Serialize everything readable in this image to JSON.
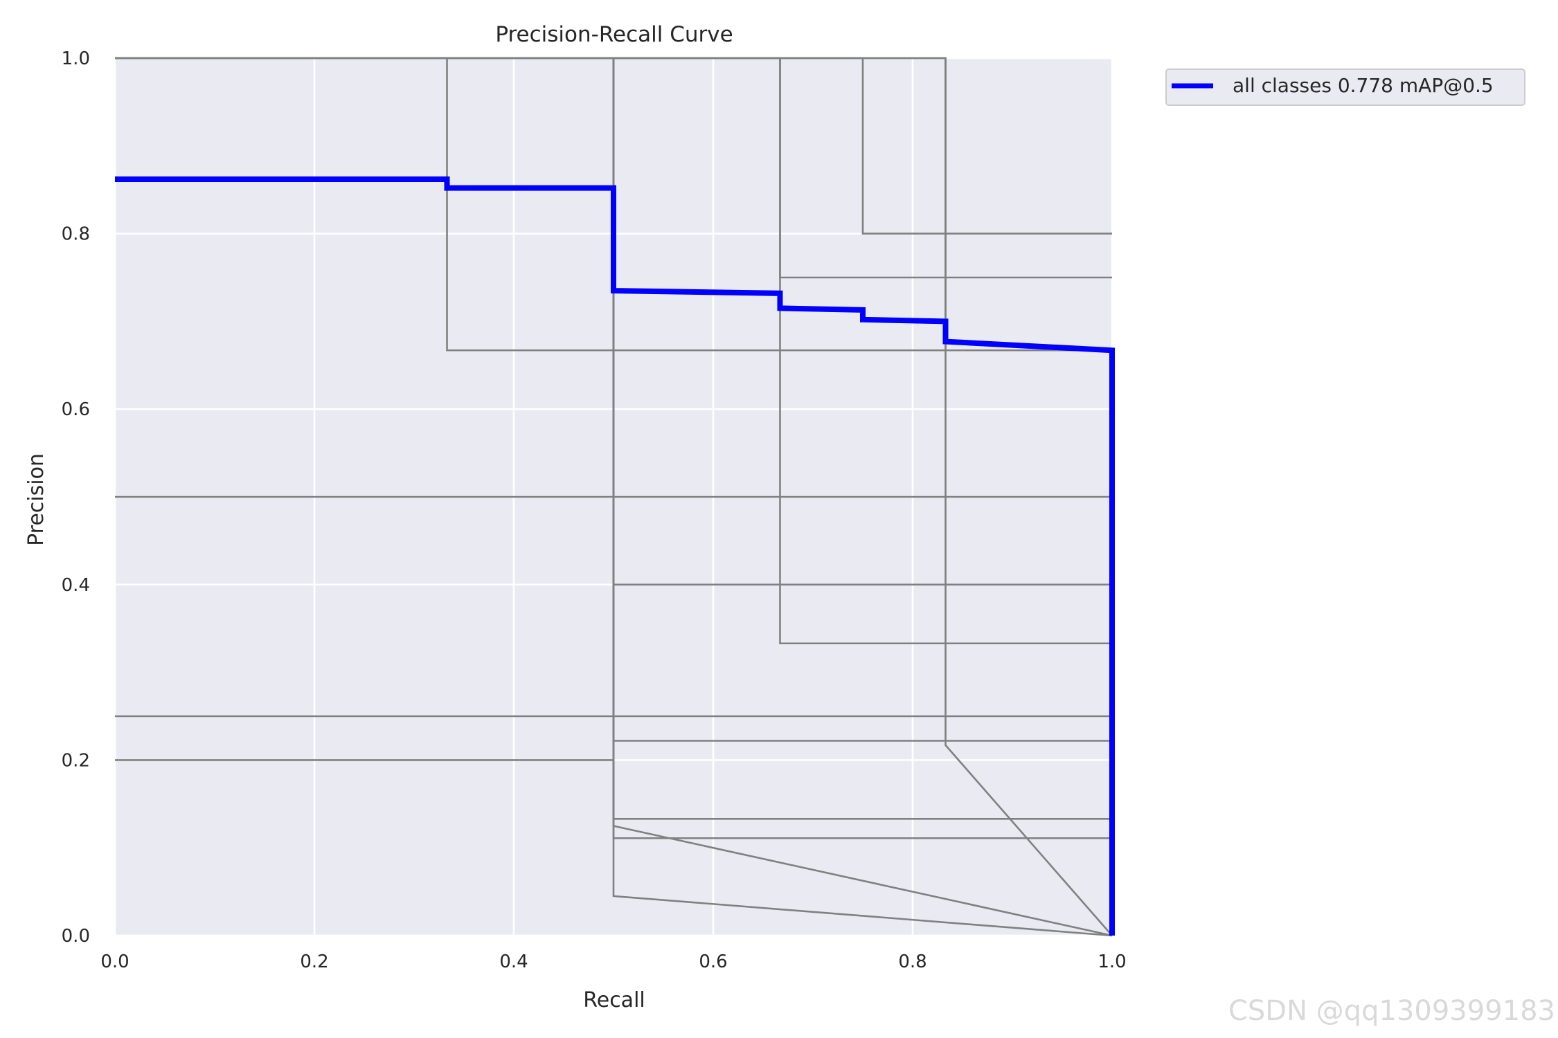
{
  "chart_data": {
    "type": "line",
    "title": "Precision-Recall Curve",
    "xlabel": "Recall",
    "ylabel": "Precision",
    "xlim": [
      0,
      1
    ],
    "ylim": [
      0,
      1
    ],
    "x_ticks": [
      "0.0",
      "0.2",
      "0.4",
      "0.6",
      "0.8",
      "1.0"
    ],
    "y_ticks": [
      "0.0",
      "0.2",
      "0.4",
      "0.6",
      "0.8",
      "1.0"
    ],
    "grid": true,
    "legend_position": "outside-top-right",
    "colors": {
      "background": "#eaeaf2",
      "grid": "#ffffff",
      "class_lines": "#808080",
      "all_classes": "#0000ff"
    },
    "series": [
      {
        "color": "#808080",
        "points": [
          [
            0,
            1
          ],
          [
            0.333,
            1
          ],
          [
            0.333,
            0.667
          ],
          [
            1,
            0.667
          ]
        ]
      },
      {
        "color": "#808080",
        "points": [
          [
            0,
            1
          ],
          [
            0.5,
            1
          ],
          [
            0.5,
            0.4
          ],
          [
            1,
            0.4
          ]
        ]
      },
      {
        "color": "#808080",
        "points": [
          [
            0,
            1
          ],
          [
            0.667,
            1
          ],
          [
            0.667,
            0.75
          ],
          [
            1,
            0.75
          ]
        ]
      },
      {
        "color": "#808080",
        "points": [
          [
            0,
            1
          ],
          [
            0.75,
            1
          ],
          [
            0.75,
            0.8
          ],
          [
            1,
            0.8
          ]
        ]
      },
      {
        "color": "#808080",
        "points": [
          [
            0,
            1
          ],
          [
            0.833,
            1
          ],
          [
            0.833,
            0.667
          ],
          [
            1,
            0.667
          ]
        ]
      },
      {
        "color": "#808080",
        "points": [
          [
            0,
            0.5
          ],
          [
            1,
            0.5
          ]
        ]
      },
      {
        "color": "#808080",
        "points": [
          [
            0,
            0.25
          ],
          [
            1,
            0.25
          ]
        ]
      },
      {
        "color": "#808080",
        "points": [
          [
            0,
            0.2
          ],
          [
            0.5,
            0.2
          ],
          [
            0.5,
            0.133
          ],
          [
            1,
            0.133
          ]
        ]
      },
      {
        "color": "#808080",
        "points": [
          [
            0,
            1
          ],
          [
            0.5,
            1
          ],
          [
            0.5,
            0.222
          ],
          [
            1,
            0.222
          ]
        ]
      },
      {
        "color": "#808080",
        "points": [
          [
            0,
            1
          ],
          [
            0.5,
            1
          ],
          [
            0.5,
            0.111
          ],
          [
            1,
            0.111
          ]
        ]
      },
      {
        "color": "#808080",
        "points": [
          [
            0,
            1
          ],
          [
            0.5,
            1
          ],
          [
            0.5,
            0.125
          ],
          [
            1,
            0
          ]
        ]
      },
      {
        "color": "#808080",
        "points": [
          [
            0,
            1
          ],
          [
            0.5,
            1
          ],
          [
            0.5,
            0.045
          ],
          [
            1,
            0
          ]
        ]
      },
      {
        "color": "#808080",
        "points": [
          [
            0,
            1
          ],
          [
            0.667,
            1
          ],
          [
            0.667,
            0.667
          ],
          [
            0.667,
            0.333
          ],
          [
            1,
            0.333
          ]
        ]
      },
      {
        "color": "#808080",
        "points": [
          [
            0,
            1
          ],
          [
            0.833,
            1
          ],
          [
            0.833,
            0.217
          ],
          [
            1,
            0
          ]
        ]
      },
      {
        "name": "all classes 0.778 mAP@0.5",
        "color": "#0000ff",
        "points": [
          [
            0,
            0.862
          ],
          [
            0.333,
            0.862
          ],
          [
            0.333,
            0.852
          ],
          [
            0.5,
            0.852
          ],
          [
            0.5,
            0.735
          ],
          [
            0.667,
            0.732
          ],
          [
            0.667,
            0.715
          ],
          [
            0.75,
            0.713
          ],
          [
            0.75,
            0.702
          ],
          [
            0.833,
            0.7
          ],
          [
            0.833,
            0.677
          ],
          [
            1,
            0.667
          ],
          [
            1,
            0
          ]
        ]
      }
    ]
  },
  "watermark": "CSDN @qq1309399183"
}
